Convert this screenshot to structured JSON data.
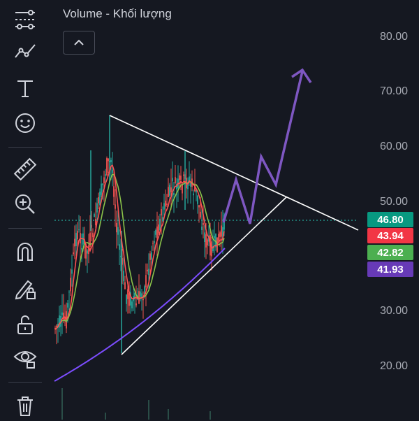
{
  "legend": {
    "title": "Volume - Khối lượng"
  },
  "toolbar": {
    "tools": [
      {
        "name": "crosshair-lines-tool",
        "icon": "lines-settings-icon"
      },
      {
        "name": "trend-line-tool",
        "icon": "trend-line-icon"
      },
      {
        "name": "text-tool",
        "icon": "text-icon"
      },
      {
        "name": "emoji-tool",
        "icon": "smiley-icon"
      },
      {
        "name": "ruler-tool",
        "icon": "ruler-icon"
      },
      {
        "name": "zoom-in-tool",
        "icon": "zoom-in-icon"
      },
      {
        "name": "magnet-tool",
        "icon": "magnet-icon"
      },
      {
        "name": "lock-drawing-tool",
        "icon": "pencil-lock-icon"
      },
      {
        "name": "lock-tool",
        "icon": "unlock-icon"
      },
      {
        "name": "visibility-tool",
        "icon": "eye-icon"
      },
      {
        "name": "delete-tool",
        "icon": "trash-icon"
      }
    ]
  },
  "yaxis": {
    "labels": [
      "80.00",
      "70.00",
      "60.00",
      "50.00",
      "30.00",
      "20.00"
    ]
  },
  "price_tags": [
    {
      "value": "46.80",
      "color": "#089981"
    },
    {
      "value": "43.94",
      "color": "#f23645"
    },
    {
      "value": "42.82",
      "color": "#4caf50"
    },
    {
      "value": "41.93",
      "color": "#673ab7"
    }
  ],
  "colors": {
    "up": "#26a69a",
    "down": "#ef5350",
    "ma_short": "#ff5252",
    "ma_mid": "#8bc34a",
    "ma_long": "#7c4dff",
    "triangle": "#ffffff",
    "projection": "#7e57c2"
  }
}
